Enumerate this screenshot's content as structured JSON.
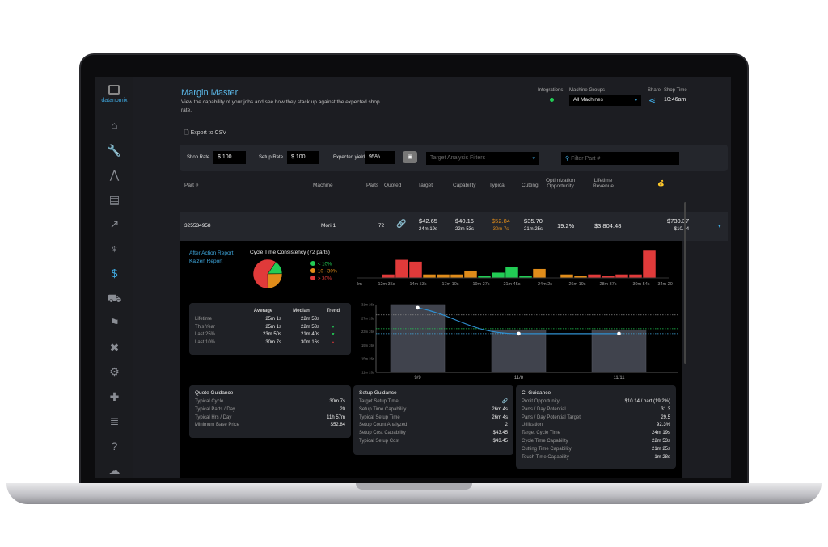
{
  "brand": "datanomix",
  "sidebar": {
    "icons": [
      "home-icon",
      "wrench-icon",
      "road-icon",
      "machine-icon",
      "trend-icon",
      "trophy-icon",
      "dollar-icon",
      "truck-icon",
      "stairs-icon",
      "tools-icon",
      "gear-icon",
      "puzzle-icon",
      "list-icon",
      "help-icon",
      "cloud-icon"
    ],
    "active": "dollar-icon",
    "accent": "#3fa9e0"
  },
  "header": {
    "title": "Margin Master",
    "subtitle": "View the capability of your jobs and see how they stack up against the expected shop rate.",
    "integrations_label": "Integrations",
    "integrations_status_color": "#22cc55",
    "machine_groups_label": "Machine Groups",
    "machine_groups_value": "All Machines",
    "share_label": "Share",
    "shop_time_label": "Shop Time",
    "shop_time": "10:46am"
  },
  "export_label": "Export to CSV",
  "filters": {
    "shop_rate_label": "Shop Rate",
    "shop_rate": "$ 100",
    "setup_rate_label": "Setup Rate",
    "setup_rate": "$ 100",
    "yield_label": "Expected yield",
    "yield": "95%",
    "target_filters_placeholder": "Target Analysis Filters",
    "filter_part_placeholder": "Filter Part #"
  },
  "table": {
    "headers": [
      "Part #",
      "Machine",
      "Parts",
      "Quoted",
      "Target",
      "Capability",
      "Typical",
      "Cutting",
      "Optimization Opportunity",
      "Lifetime Revenue"
    ],
    "row": {
      "part": "325534958",
      "machine": "Mori 1",
      "parts": "72",
      "target": "$42.65",
      "target_time": "24m 19s",
      "capability": "$40.16",
      "capability_time": "22m 53s",
      "typical": "$52.84",
      "typical_time": "30m 7s",
      "cutting": "$35.70",
      "cutting_time": "21m 25s",
      "opportunity": "19.2%",
      "revenue": "$3,804.48",
      "profit": "$730.37",
      "profit_per": "$10.14"
    }
  },
  "links": [
    "After Action Report",
    "Kaizen Report"
  ],
  "stats": {
    "headers": [
      "Average",
      "Median",
      "Trend"
    ],
    "rows": [
      {
        "label": "Lifetime",
        "avg": "25m 1s",
        "median": "22m 53s",
        "trend": ""
      },
      {
        "label": "This Year",
        "avg": "25m 1s",
        "median": "22m 53s",
        "trend": "down"
      },
      {
        "label": "Last 25%",
        "avg": "23m 50s",
        "median": "21m 40s",
        "trend": "down"
      },
      {
        "label": "Last 10%",
        "avg": "30m 7s",
        "median": "30m 16s",
        "trend": "up"
      }
    ]
  },
  "chart_data": [
    {
      "type": "pie",
      "title": "Cycle Time Consistency (72 parts)",
      "labels": [
        "< 10%",
        "10 - 30%",
        "> 30%"
      ],
      "values": [
        11,
        18,
        43
      ],
      "colors": [
        "#22cc55",
        "#e08c1a",
        "#e03a3a"
      ],
      "legend": "right"
    },
    {
      "type": "bar",
      "xticks": [
        "0m",
        "12m 35s",
        "14m 53s",
        "17m 10s",
        "19m 27s",
        "21m 45s",
        "24m 2s",
        "26m 19s",
        "28m 37s",
        "30m 54s",
        "34m 20s"
      ],
      "values": [
        2,
        10,
        9,
        2,
        2,
        2,
        4,
        1,
        3,
        6,
        1,
        5,
        0,
        2,
        1,
        2,
        1,
        2,
        2,
        15
      ],
      "colors": [
        "r",
        "r",
        "r",
        "o",
        "o",
        "o",
        "o",
        "g",
        "g",
        "g",
        "g",
        "o",
        "o",
        "o",
        "o",
        "r",
        "r",
        "r",
        "r",
        "r"
      ]
    },
    {
      "type": "bar",
      "categories": [
        "9/9",
        "11/8",
        "11/11"
      ],
      "values": [
        31.43,
        24.0,
        24.0
      ],
      "line": [
        30.5,
        22.88,
        22.88
      ],
      "yticks": [
        "11m 26s",
        "15m 26s",
        "19m 26s",
        "23m 26s",
        "27m 26s",
        "31m 26s"
      ],
      "ylim": [
        11.43,
        31.43
      ],
      "reference_lines": [
        {
          "value": 28.4,
          "color": "#888888"
        },
        {
          "value": 24.32,
          "color": "#22cc55"
        },
        {
          "value": 22.88,
          "color": "#3fa9e0"
        }
      ]
    }
  ],
  "quote": {
    "title": "Quote Guidance",
    "rows": [
      [
        "Typical Cycle",
        "30m 7s"
      ],
      [
        "Typical Parts / Day",
        "20"
      ],
      [
        "Typical Hrs / Day",
        "11h 57m"
      ],
      [
        "Minimum Base Price",
        "$52.84"
      ]
    ]
  },
  "setup": {
    "title": "Setup Guidance",
    "rows": [
      [
        "Target Setup Time",
        ""
      ],
      [
        "Setup Time Capability",
        "26m 4s"
      ],
      [
        "Typical Setup Time",
        "26m 4s"
      ],
      [
        "Setup Count Analyzed",
        "2"
      ],
      [
        "Setup Cost Capability",
        "$43.45"
      ],
      [
        "Typical Setup Cost",
        "$43.45"
      ]
    ]
  },
  "ci": {
    "title": "CI Guidance",
    "rows": [
      [
        "Profit Opportunity",
        "$10.14 / part (19.2%)"
      ],
      [
        "Parts / Day Potential",
        "31.3"
      ],
      [
        "Parts / Day Potential Target",
        "29.5"
      ],
      [
        "Utilization",
        "92.3%"
      ],
      [
        "Target Cycle Time",
        "24m 19s"
      ],
      [
        "Cycle Time Capability",
        "22m 53s"
      ],
      [
        "Cutting Time Capability",
        "21m 25s"
      ],
      [
        "Touch Time Capability",
        "1m 28s"
      ]
    ]
  }
}
